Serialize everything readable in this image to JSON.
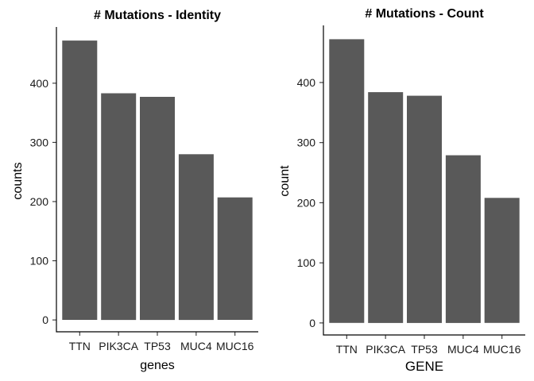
{
  "chart_data": [
    {
      "type": "bar",
      "title": "# Mutations - Identity",
      "xlabel": "genes",
      "ylabel": "counts",
      "categories": [
        "TTN",
        "PIK3CA",
        "TP53",
        "MUC4",
        "MUC16"
      ],
      "values": [
        472,
        383,
        377,
        280,
        207
      ],
      "yticks": [
        0,
        100,
        200,
        300,
        400
      ],
      "ylim": [
        -20,
        495
      ],
      "grid": false,
      "bar_color": "#595959"
    },
    {
      "type": "bar",
      "title": "# Mutations - Count",
      "xlabel": "GENE",
      "ylabel": "count",
      "categories": [
        "TTN",
        "PIK3CA",
        "TP53",
        "MUC4",
        "MUC16"
      ],
      "values": [
        472,
        384,
        378,
        279,
        208
      ],
      "yticks": [
        0,
        100,
        200,
        300,
        400
      ],
      "ylim": [
        -20,
        495
      ],
      "grid": false,
      "bar_color": "#595959"
    }
  ]
}
